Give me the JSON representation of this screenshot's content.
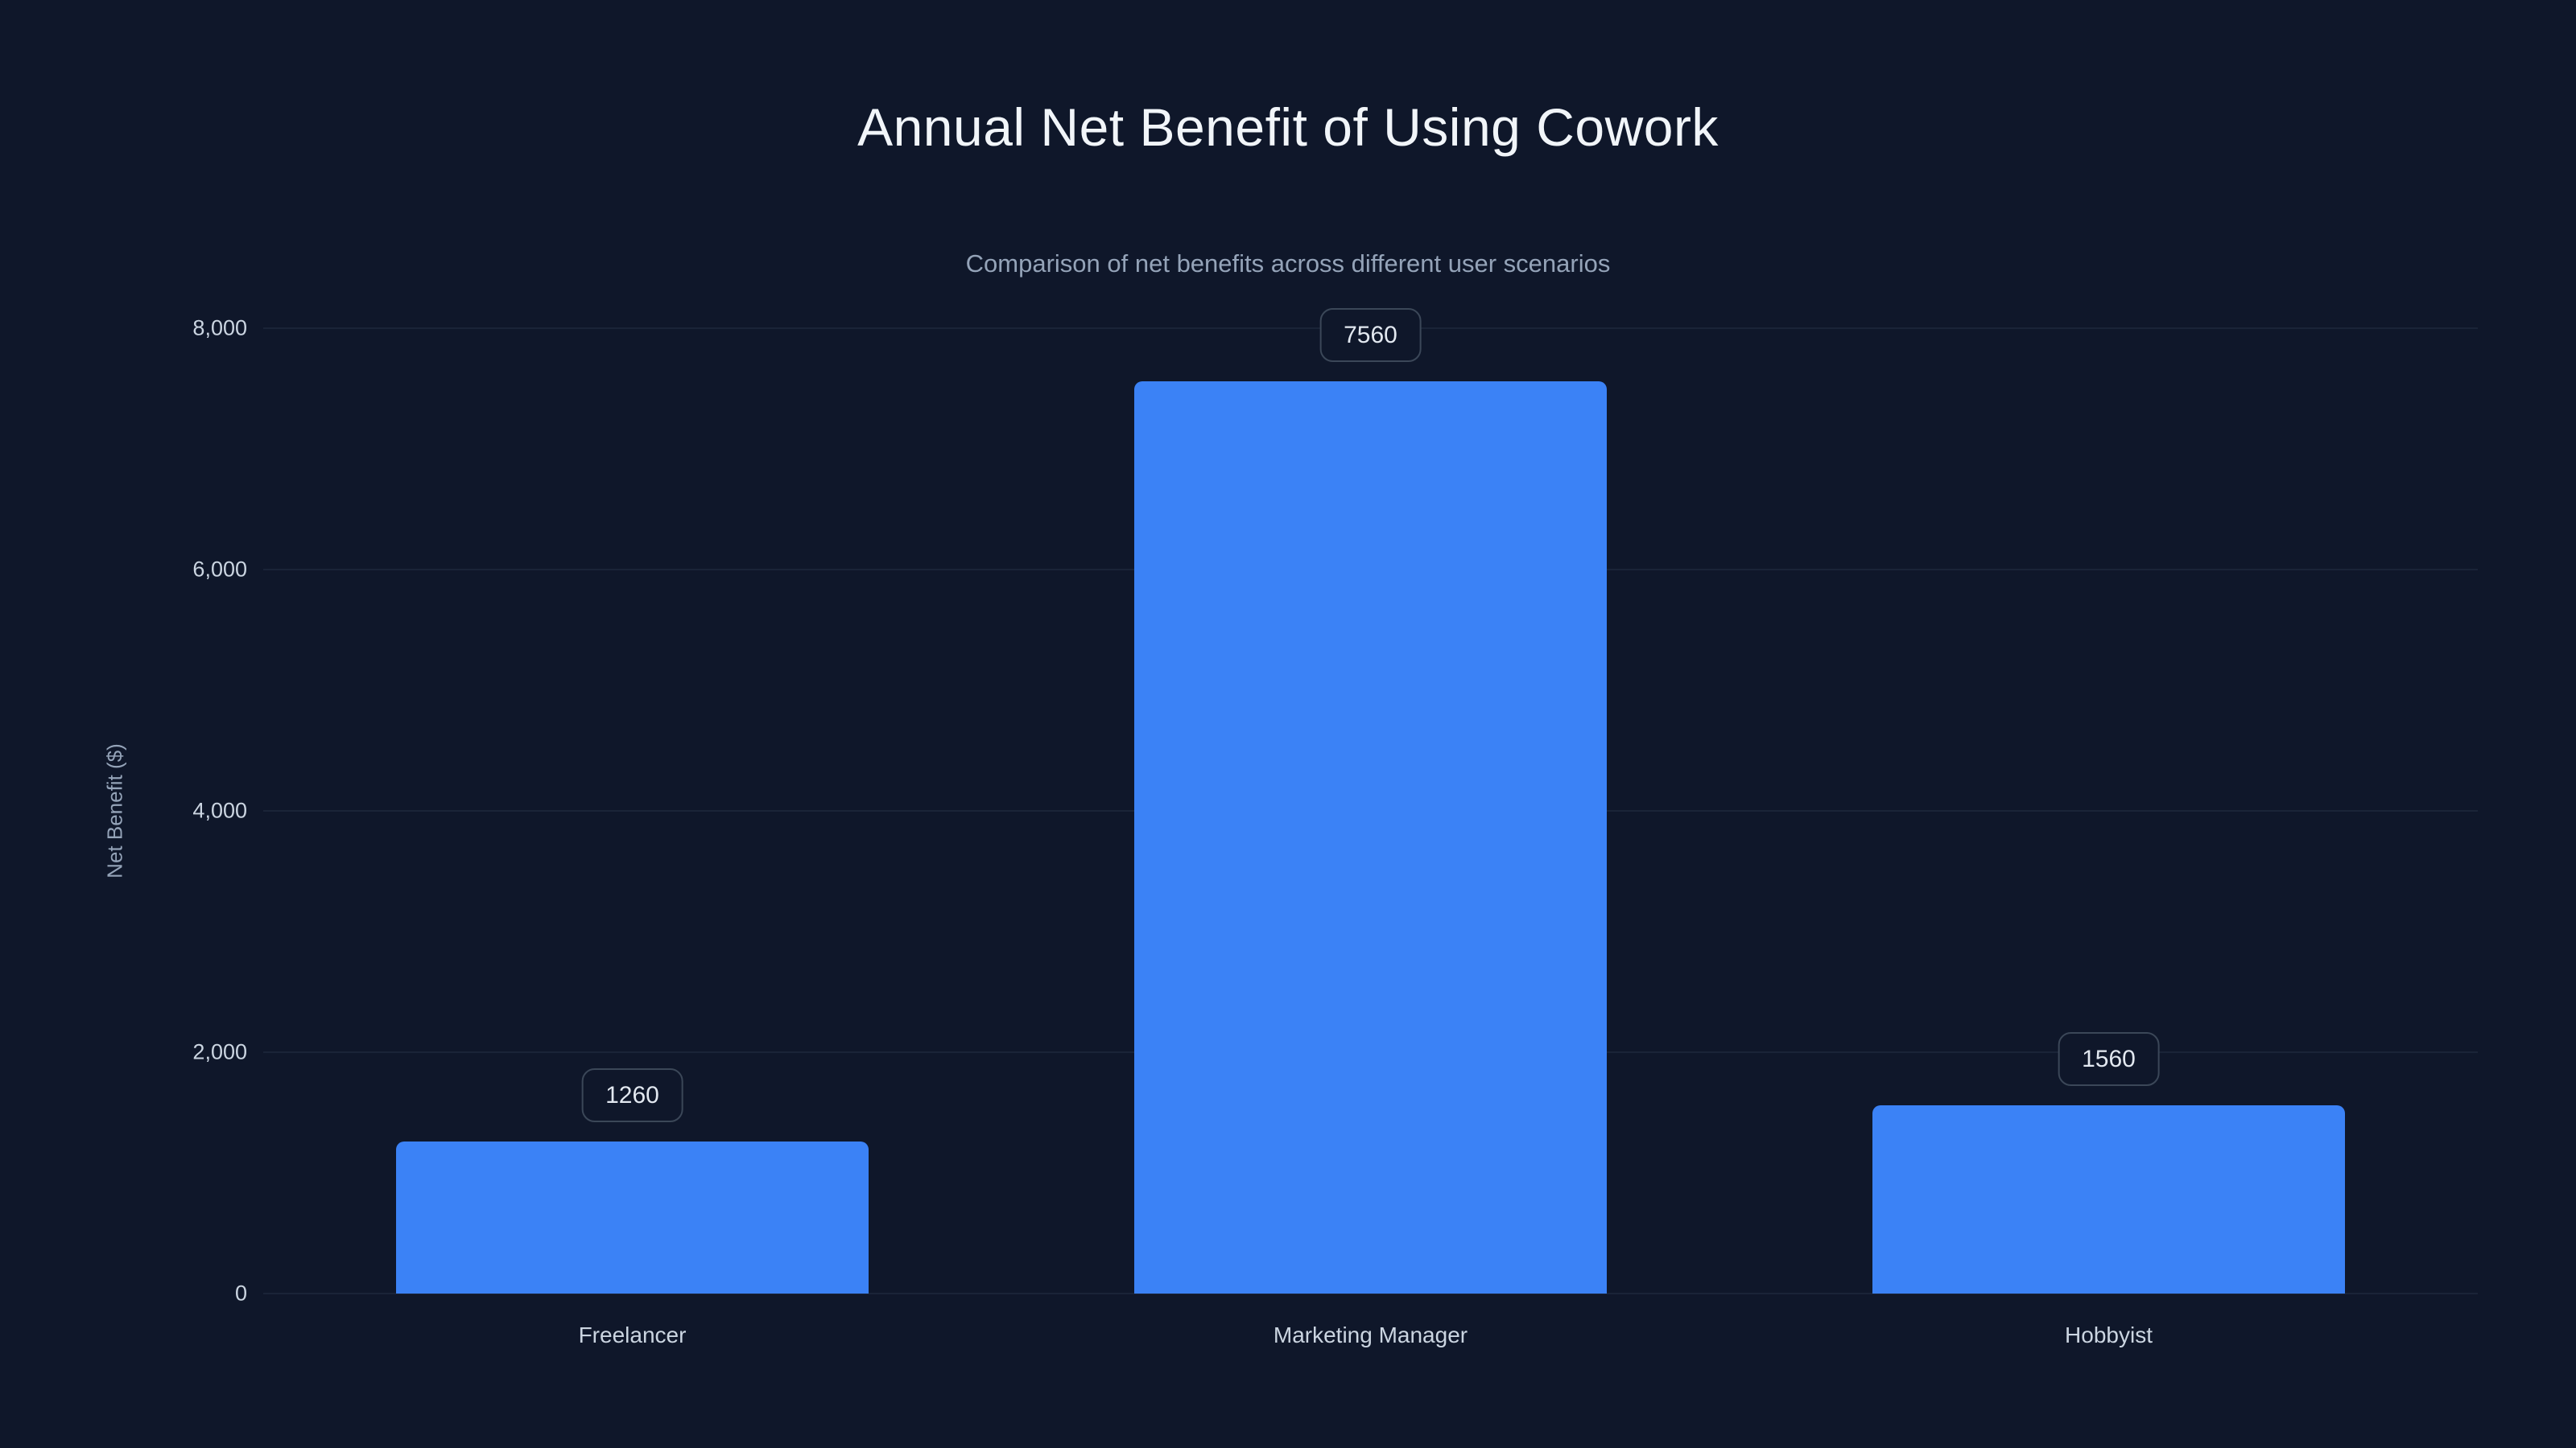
{
  "chart_data": {
    "type": "bar",
    "title": "Annual Net Benefit of Using Cowork",
    "subtitle": "Comparison of net benefits across different user scenarios",
    "xlabel": "",
    "ylabel": "Net Benefit ($)",
    "categories": [
      "Freelancer",
      "Marketing Manager",
      "Hobbyist"
    ],
    "values": [
      1260,
      7560,
      1560
    ],
    "value_labels": [
      "1260",
      "7560",
      "1560"
    ],
    "ylim": [
      0,
      8000
    ],
    "yticks": [
      0,
      2000,
      4000,
      6000,
      8000
    ],
    "ytick_labels": [
      "0",
      "2,000",
      "4,000",
      "6,000",
      "8,000"
    ],
    "grid": true,
    "legend": false,
    "colors": {
      "background": "#0f172a",
      "bar": "#3b82f6",
      "grid": "#243047",
      "title_text": "#f1f5f9",
      "subtitle_text": "#94a3b8",
      "tick_text": "#cbd5e1",
      "badge_border": "#3b4758",
      "badge_bg": "#0f172a",
      "badge_text": "#e2e8f0"
    }
  }
}
